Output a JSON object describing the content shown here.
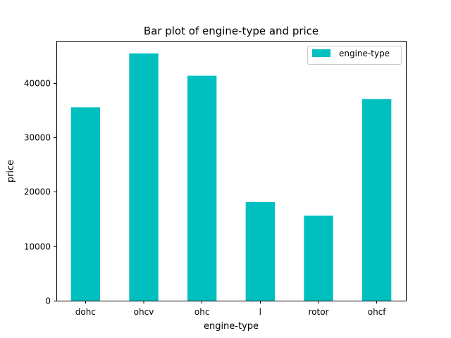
{
  "chart_data": {
    "type": "bar",
    "title": "Bar plot of engine-type and price",
    "xlabel": "engine-type",
    "ylabel": "price",
    "categories": [
      "dohc",
      "ohcv",
      "ohc",
      "l",
      "rotor",
      "ohcf"
    ],
    "series": [
      {
        "name": "engine-type",
        "values": [
          35500,
          45400,
          41300,
          18100,
          15600,
          37000
        ],
        "color": "#00bfbf"
      }
    ],
    "ylim": [
      0,
      47700
    ],
    "yticks": [
      0,
      10000,
      20000,
      30000,
      40000
    ],
    "ytick_labels": [
      "0",
      "10000",
      "20000",
      "30000",
      "40000"
    ],
    "grid": false,
    "legend": "top-right"
  }
}
